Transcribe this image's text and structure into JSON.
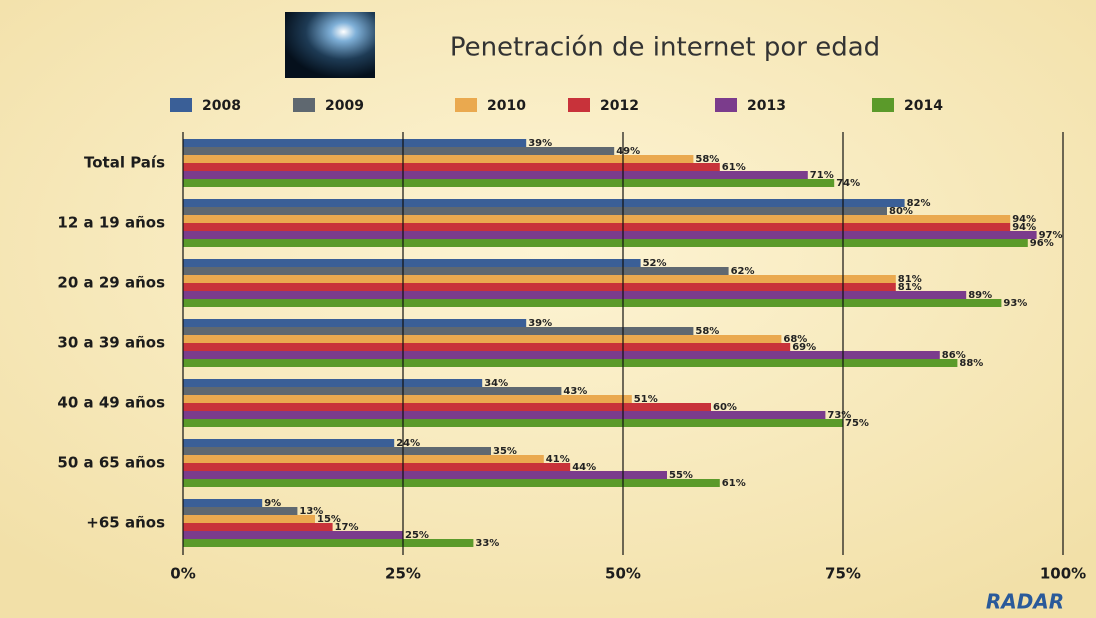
{
  "chart_data": {
    "type": "bar",
    "orientation": "horizontal",
    "title": "Penetración de internet por edad",
    "categories": [
      "Total País",
      "12 a 19 años",
      "20 a 29 años",
      "30 a 39 años",
      "40 a 49 años",
      "50 a 65 años",
      "+65 años"
    ],
    "series": [
      {
        "name": "2008",
        "color": "#3a5f97",
        "values": [
          39,
          82,
          52,
          39,
          34,
          24,
          9
        ],
        "value_labels": [
          "39%",
          "82%",
          "52%",
          "39%",
          "34%",
          "24%",
          "9%"
        ]
      },
      {
        "name": "2009",
        "color": "#5f6870",
        "values": [
          49,
          80,
          62,
          58,
          43,
          35,
          13
        ],
        "value_labels": [
          "49%",
          "80%",
          "62%",
          "58%",
          "43%",
          "35%",
          "13%"
        ]
      },
      {
        "name": "2010",
        "color": "#eaa94f",
        "values": [
          58,
          94,
          81,
          68,
          51,
          41,
          15
        ],
        "value_labels": [
          "58%",
          "94%",
          "81%",
          "68%",
          "51%",
          "41%",
          "15%"
        ]
      },
      {
        "name": "2012",
        "color": "#c8323a",
        "values": [
          61,
          94,
          81,
          69,
          60,
          44,
          17
        ],
        "value_labels": [
          "61%",
          "94%",
          "81%",
          "69%",
          "60%",
          "44%",
          "17%"
        ]
      },
      {
        "name": "2013",
        "color": "#7b3c8c",
        "values": [
          71,
          97,
          89,
          86,
          73,
          55,
          25
        ],
        "value_labels": [
          "71%",
          "97%",
          "89%",
          "86%",
          "73%",
          "55%",
          "25%"
        ]
      },
      {
        "name": "2014",
        "color": "#5b9a2a",
        "values": [
          74,
          96,
          93,
          88,
          75,
          61,
          33
        ],
        "value_labels": [
          "74%",
          "96%",
          "93%",
          "88%",
          "75%",
          "61%",
          "33%"
        ]
      }
    ],
    "xlim": [
      0,
      100
    ],
    "xticks": [
      {
        "value": 0,
        "label": "0%"
      },
      {
        "value": 25,
        "label": "25%"
      },
      {
        "value": 50,
        "label": "50%"
      },
      {
        "value": 75,
        "label": "75%"
      },
      {
        "value": 100,
        "label": "100%"
      }
    ],
    "grid": true,
    "logo": "RADAR"
  }
}
